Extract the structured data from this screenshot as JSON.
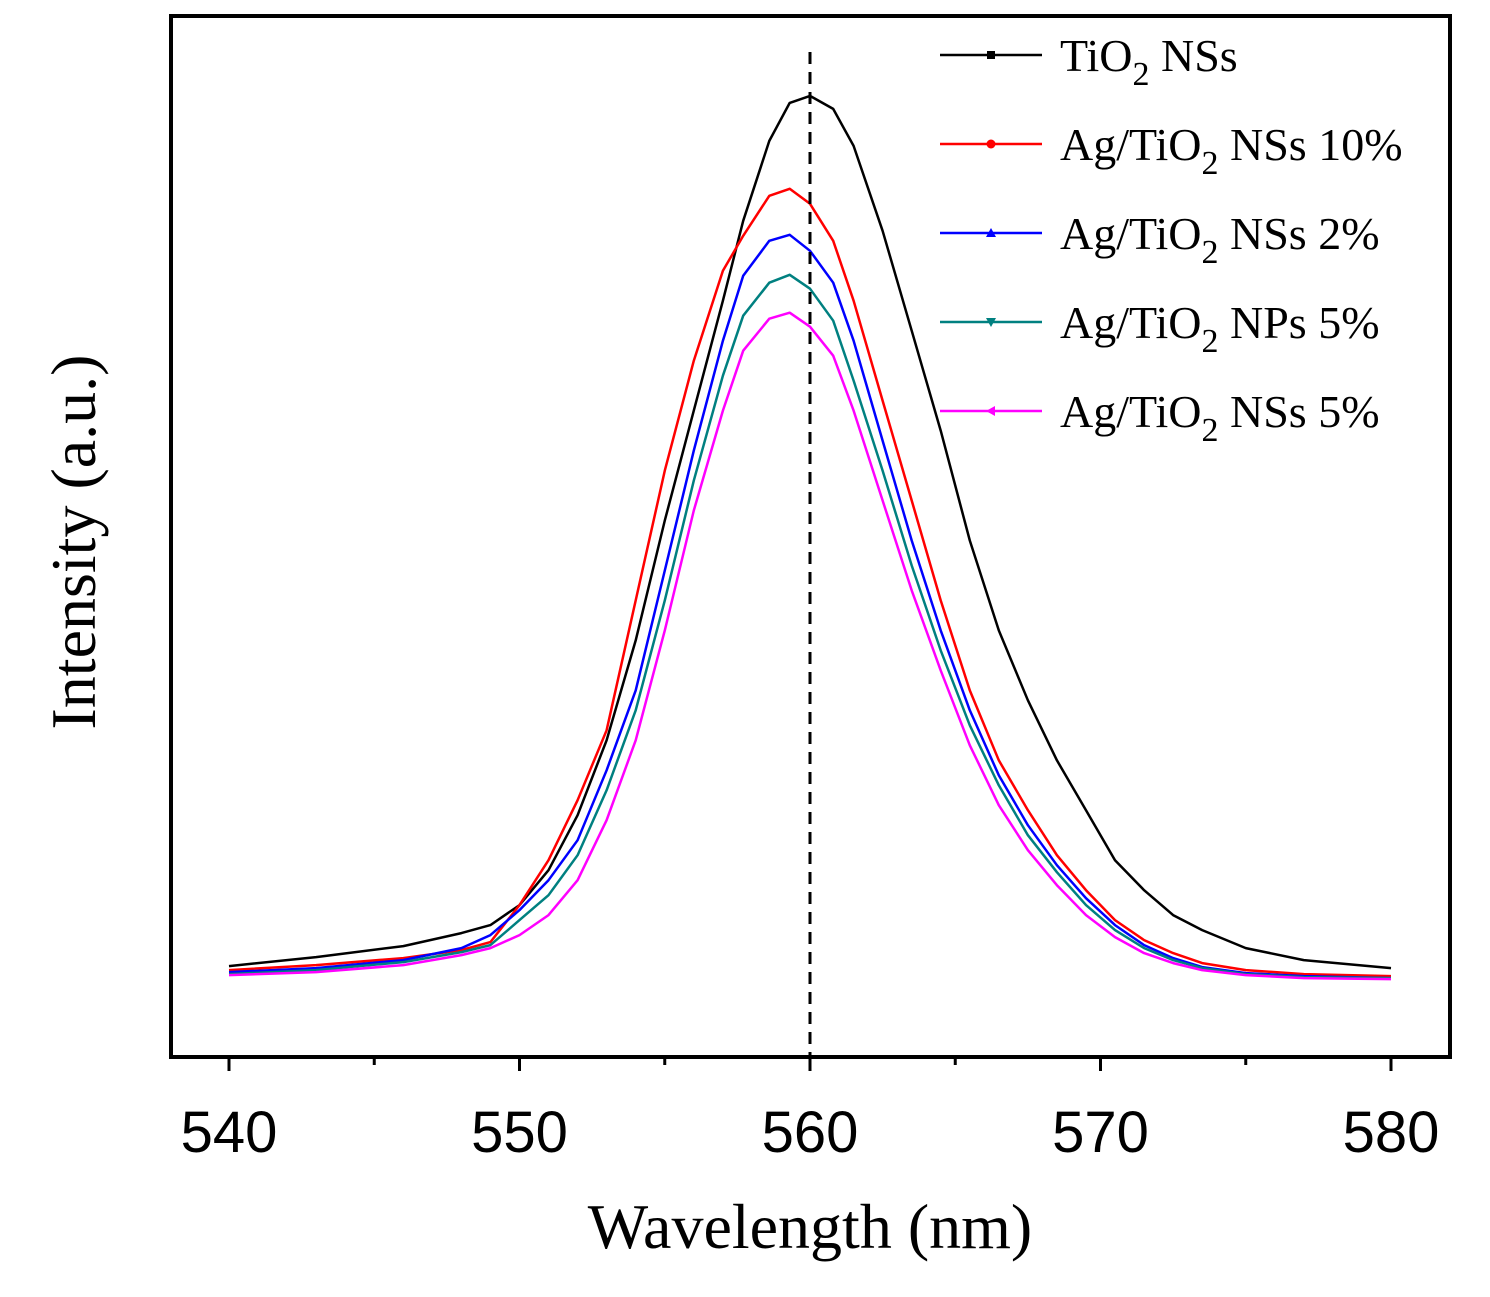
{
  "chart_data": {
    "type": "line",
    "title": "",
    "xlabel": "Wavelength (nm)",
    "ylabel": "Intensity (a.u.)",
    "xlim": [
      538,
      582
    ],
    "ylim": [
      0,
      104.2
    ],
    "xticks": [
      540,
      550,
      560,
      570,
      580
    ],
    "xtick_labels": [
      "540",
      "550",
      "560",
      "570",
      "580"
    ],
    "minor_xticks": [
      545,
      555,
      565,
      575
    ],
    "yticks_shown": false,
    "grid": false,
    "legend_position": "top-right",
    "reference_line": {
      "x": 560,
      "style": "dashed",
      "color": "#000000"
    },
    "x": [
      540,
      543,
      546,
      548,
      549,
      550,
      551,
      552,
      553,
      554,
      555,
      556,
      557,
      557.7,
      558.6,
      559.3,
      560,
      560.8,
      561.5,
      562.5,
      563.5,
      564.5,
      565.5,
      566.5,
      567.5,
      568.5,
      569.5,
      570.5,
      571.5,
      572.5,
      573.5,
      575,
      577,
      580
    ],
    "series": [
      {
        "name": "TiO2 NSs",
        "label_pre": "TiO",
        "label_sub": "2",
        "label_post": " NSs",
        "color": "#000000",
        "marker": "square",
        "values": [
          9.1,
          10.0,
          11.1,
          12.4,
          13.2,
          15.2,
          18.7,
          24.2,
          31.7,
          41.7,
          53.7,
          64.7,
          75.7,
          83.7,
          91.7,
          95.5,
          96.2,
          94.9,
          91.2,
          82.7,
          72.7,
          62.7,
          51.7,
          42.7,
          35.7,
          29.7,
          24.7,
          19.7,
          16.7,
          14.2,
          12.7,
          10.9,
          9.7,
          8.9
        ]
      },
      {
        "name": "Ag/TiO2 NSs 10%",
        "label_pre": "Ag/TiO",
        "label_sub": "2",
        "label_post": " NSs 10%",
        "color": "#ff0000",
        "marker": "circle",
        "values": [
          8.7,
          9.2,
          9.9,
          10.7,
          11.5,
          15.2,
          19.7,
          25.7,
          32.7,
          45.7,
          58.7,
          69.7,
          78.7,
          82.2,
          86.2,
          86.9,
          85.4,
          81.7,
          75.7,
          65.7,
          55.7,
          45.7,
          36.7,
          29.7,
          24.7,
          20.2,
          16.7,
          13.7,
          11.7,
          10.4,
          9.4,
          8.7,
          8.3,
          8.1
        ]
      },
      {
        "name": "Ag/TiO2 NSs 2%",
        "label_pre": "Ag/TiO",
        "label_sub": "2",
        "label_post": " NSs 2%",
        "color": "#0000ff",
        "marker": "triangle-up",
        "values": [
          8.5,
          8.9,
          9.7,
          10.9,
          12.2,
          14.7,
          17.7,
          21.7,
          28.7,
          36.7,
          48.7,
          60.7,
          71.7,
          78.2,
          81.7,
          82.3,
          80.7,
          77.5,
          71.7,
          61.7,
          51.7,
          42.7,
          34.7,
          28.2,
          23.2,
          19.2,
          15.9,
          13.2,
          11.2,
          9.9,
          9.0,
          8.4,
          8.1,
          7.9
        ]
      },
      {
        "name": "Ag/TiO2 NPs 5%",
        "label_pre": "Ag/TiO",
        "label_sub": "2",
        "label_post": " NPs 5%",
        "color": "#008080",
        "marker": "triangle-down",
        "values": [
          8.3,
          8.7,
          9.5,
          10.5,
          11.2,
          13.7,
          16.2,
          20.2,
          26.7,
          34.7,
          45.7,
          57.7,
          68.2,
          74.2,
          77.5,
          78.3,
          76.9,
          73.7,
          67.7,
          58.7,
          49.2,
          40.7,
          33.2,
          27.2,
          22.2,
          18.5,
          15.2,
          12.7,
          10.9,
          9.7,
          8.9,
          8.3,
          8.0,
          7.9
        ]
      },
      {
        "name": "Ag/TiO2 NSs 5%",
        "label_pre": "Ag/TiO",
        "label_sub": "2",
        "label_post": " NSs 5%",
        "color": "#ff00ff",
        "marker": "triangle-left",
        "values": [
          8.2,
          8.5,
          9.2,
          10.2,
          10.9,
          12.2,
          14.2,
          17.7,
          23.7,
          31.7,
          42.7,
          54.7,
          64.7,
          70.7,
          73.9,
          74.5,
          73.1,
          70.2,
          64.7,
          55.7,
          46.7,
          38.7,
          31.2,
          25.2,
          20.7,
          17.2,
          14.2,
          12.0,
          10.4,
          9.4,
          8.7,
          8.2,
          7.9,
          7.8
        ]
      }
    ]
  }
}
